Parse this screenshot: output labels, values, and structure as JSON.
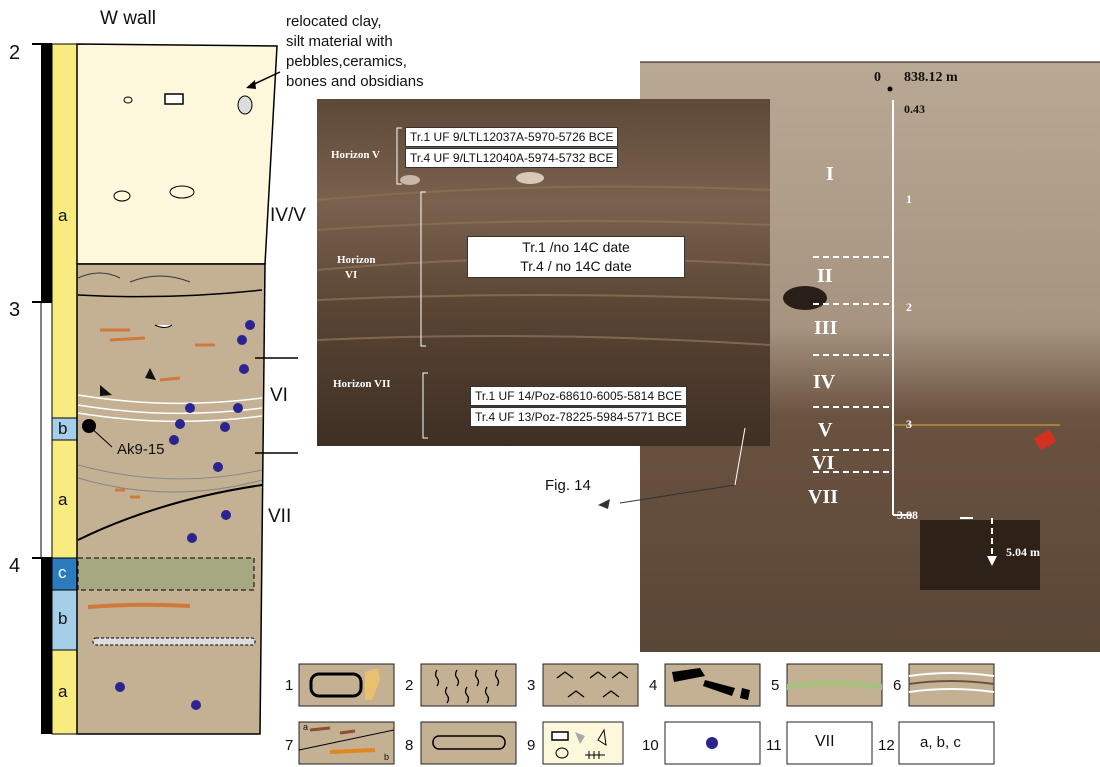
{
  "section": {
    "title": "W wall",
    "depths": [
      "2",
      "3",
      "4"
    ],
    "units": [
      "a",
      "b",
      "a",
      "c",
      "b",
      "a"
    ],
    "horizons": [
      "IV/V",
      "VI",
      "VII"
    ],
    "sample_label": "Ak9-15",
    "fill_note": [
      "relocated clay,",
      "silt material with",
      "pebbles,ceramics,",
      "bones and obsidians"
    ]
  },
  "photo": {
    "datum": "0",
    "elevation": "838.12 m",
    "top_depth": "0.43",
    "scale_marks": [
      "1",
      "2",
      "3"
    ],
    "bottom_depth": "3.88",
    "trench_depth": "5.04 m",
    "horizons": [
      "I",
      "II",
      "III",
      "IV",
      "V",
      "VI",
      "VII"
    ],
    "fig_ref": "Fig. 14"
  },
  "inset": {
    "groups": [
      {
        "label": "Horizon V",
        "dates": [
          "Tr.1 UF 9/LTL12037A-5970-5726 BCE",
          "Tr.4 UF 9/LTL12040A-5974-5732 BCE"
        ]
      },
      {
        "label_lines": [
          "Horizon",
          "VI"
        ],
        "dates": [
          "Tr.1 /no 14C date",
          "Tr.4 / no 14C date"
        ]
      },
      {
        "label": "Horizon VII",
        "dates": [
          "Tr.1 UF 14/Poz-68610-6005-5814 BCE",
          "Tr.4 UF 13/Poz-78225-5984-5771 BCE"
        ]
      }
    ]
  },
  "legend": {
    "numbers": [
      "1",
      "2",
      "3",
      "4",
      "5",
      "6",
      "7",
      "8",
      "9",
      "10",
      "11",
      "12"
    ],
    "text_11": "VII",
    "text_12": "a, b, c",
    "sub_7": [
      "a",
      "b"
    ]
  },
  "colors": {
    "fill_light": "#fdf8dc",
    "fill_brown": "#c4b092",
    "fill_olive": "#a7a982",
    "bar_yellow": "#f8ec80",
    "bar_blue": "#a5cfe9",
    "bar_dark_blue": "#2b7bbf",
    "orange": "#cf7a3a",
    "dot": "#2b2490"
  }
}
